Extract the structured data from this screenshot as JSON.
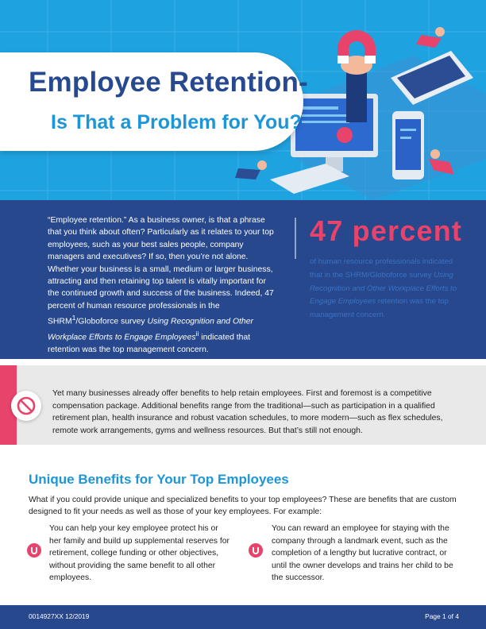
{
  "colors": {
    "hero_blue": "#1fa3e0",
    "navy": "#27488d",
    "accent_pink": "#e8436a",
    "sky_text": "#1d96d8",
    "callout_grey": "#e9e9ea"
  },
  "hero": {
    "title_line1": "Employee Retention-",
    "title_line2": "Is That a Problem for You?",
    "illustration_icon": "magnet-hand-devices-illustration"
  },
  "intro": {
    "paragraph_parts": [
      "“Employee retention.” As a business owner, is that a phrase that you think about often? Particularly as it relates to your top employees, such as your best sales people, company managers and executives? If so, then you’re not alone. Whether your business is a small, medium or larger business, attracting and then retaining top talent is vitally important for the continued growth and success of the business. Indeed, 47 percent of human resource professionals in the SHRM",
      "1",
      "/Globoforce survey ",
      "Using Recognition and Other Workplace Efforts to Engage Employees",
      "ii",
      " indicated that retention was the top management concern."
    ],
    "stat_number": "47 percent",
    "stat_text_parts": [
      "of human resource professionals indicated that in the SHRM/Globoforce survey ",
      "Using Recognition and Other Workplace Efforts to Engage Employees",
      " retention was the top management concern."
    ]
  },
  "callout": {
    "icon": "no-sign-icon",
    "text": "Yet many businesses already offer benefits to help retain employees. First and foremost is a competitive compensation package. Additional benefits range from the traditional—such as participation in a qualified retirement plan, health insurance and robust vacation schedules, to more modern—such as flex schedules, remote work arrangements, gyms and wellness resources. But that’s still not enough."
  },
  "section": {
    "title": "Unique Benefits for Your Top Employees",
    "intro": "What if you could provide unique and specialized benefits to your top employees? These are benefits that are custom designed to fit your needs as well as those of your key employees. For example:",
    "benefits": [
      {
        "icon": "magnet-icon",
        "text": "You can help your key employee protect his or her family and build up supplemental reserves for retirement, college funding or other objectives, without providing the same benefit to all other employees."
      },
      {
        "icon": "magnet-icon",
        "text": "You can reward an employee for staying with the company through a landmark event, such as the completion of a lengthy but lucrative contract, or until the owner develops and trains her child to be the successor."
      }
    ]
  },
  "footer": {
    "doc_id": "0014927XX 12/2019",
    "page": "Page 1 of 4"
  }
}
